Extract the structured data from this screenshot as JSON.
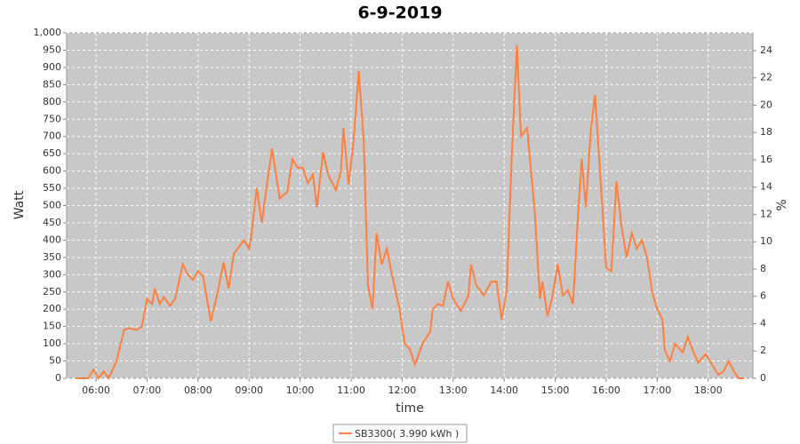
{
  "chart_data": {
    "type": "line",
    "title": "6-9-2019",
    "xlabel": "time",
    "ylabel": "Watt",
    "y2label": "%",
    "x": [
      5.6,
      5.85,
      5.95,
      6.05,
      6.15,
      6.25,
      6.4,
      6.55,
      6.65,
      6.8,
      6.9,
      7.0,
      7.1,
      7.15,
      7.25,
      7.33,
      7.45,
      7.55,
      7.7,
      7.8,
      7.9,
      8.0,
      8.1,
      8.25,
      8.4,
      8.5,
      8.6,
      8.7,
      8.8,
      8.9,
      9.0,
      9.05,
      9.15,
      9.25,
      9.33,
      9.45,
      9.6,
      9.75,
      9.85,
      9.95,
      10.05,
      10.15,
      10.25,
      10.33,
      10.45,
      10.55,
      10.7,
      10.8,
      10.85,
      10.95,
      11.05,
      11.15,
      11.25,
      11.33,
      11.42,
      11.5,
      11.6,
      11.7,
      11.8,
      11.95,
      12.05,
      12.15,
      12.25,
      12.4,
      12.55,
      12.6,
      12.7,
      12.8,
      12.9,
      13.0,
      13.15,
      13.3,
      13.35,
      13.45,
      13.6,
      13.75,
      13.85,
      13.95,
      14.05,
      14.15,
      14.25,
      14.33,
      14.45,
      14.6,
      14.7,
      14.75,
      14.85,
      14.95,
      15.05,
      15.15,
      15.25,
      15.35,
      15.45,
      15.52,
      15.6,
      15.7,
      15.78,
      15.9,
      16.0,
      16.1,
      16.2,
      16.3,
      16.4,
      16.5,
      16.6,
      16.7,
      16.8,
      16.9,
      17.0,
      17.1,
      17.15,
      17.25,
      17.35,
      17.5,
      17.6,
      17.7,
      17.8,
      17.95,
      18.05,
      18.2,
      18.3,
      18.4,
      18.5,
      18.6,
      18.7
    ],
    "series": [
      {
        "name": "SB3300( 3.990 kWh )",
        "color": "#ff7f3f",
        "values": [
          0,
          0,
          25,
          0,
          20,
          0,
          50,
          140,
          145,
          140,
          150,
          230,
          215,
          260,
          215,
          235,
          210,
          230,
          330,
          300,
          285,
          310,
          295,
          165,
          260,
          335,
          260,
          360,
          380,
          400,
          375,
          420,
          550,
          450,
          540,
          665,
          520,
          540,
          635,
          610,
          610,
          565,
          590,
          495,
          655,
          590,
          545,
          600,
          725,
          560,
          690,
          890,
          680,
          270,
          200,
          420,
          330,
          375,
          300,
          200,
          100,
          85,
          40,
          100,
          135,
          200,
          215,
          210,
          280,
          230,
          195,
          240,
          330,
          270,
          240,
          280,
          280,
          170,
          255,
          650,
          965,
          700,
          725,
          480,
          230,
          280,
          180,
          240,
          330,
          240,
          255,
          215,
          480,
          635,
          495,
          720,
          820,
          550,
          320,
          310,
          570,
          440,
          350,
          420,
          375,
          400,
          350,
          250,
          200,
          170,
          80,
          50,
          100,
          75,
          120,
          80,
          45,
          70,
          45,
          10,
          20,
          50,
          20,
          0,
          0
        ]
      }
    ],
    "xlim": [
      5.425,
      18.875
    ],
    "xticks": [
      {
        "value": 6,
        "label": "06:00"
      },
      {
        "value": 7,
        "label": "07:00"
      },
      {
        "value": 8,
        "label": "08:00"
      },
      {
        "value": 9,
        "label": "09:00"
      },
      {
        "value": 10,
        "label": "10:00"
      },
      {
        "value": 11,
        "label": "11:00"
      },
      {
        "value": 12,
        "label": "12:00"
      },
      {
        "value": 13,
        "label": "13:00"
      },
      {
        "value": 14,
        "label": "14:00"
      },
      {
        "value": 15,
        "label": "15:00"
      },
      {
        "value": 16,
        "label": "16:00"
      },
      {
        "value": 17,
        "label": "17:00"
      },
      {
        "value": 18,
        "label": "18:00"
      }
    ],
    "ylim": [
      0,
      1000
    ],
    "yticks": [
      0,
      50,
      100,
      150,
      200,
      250,
      300,
      350,
      400,
      450,
      500,
      550,
      600,
      650,
      700,
      750,
      800,
      850,
      900,
      950,
      {
        "value": 1000,
        "label": "1,000"
      }
    ],
    "y2lim": [
      0,
      25.3
    ],
    "y2ticks": [
      0,
      2,
      4,
      6,
      8,
      10,
      12,
      14,
      16,
      18,
      20,
      22,
      24
    ],
    "grid": true
  }
}
